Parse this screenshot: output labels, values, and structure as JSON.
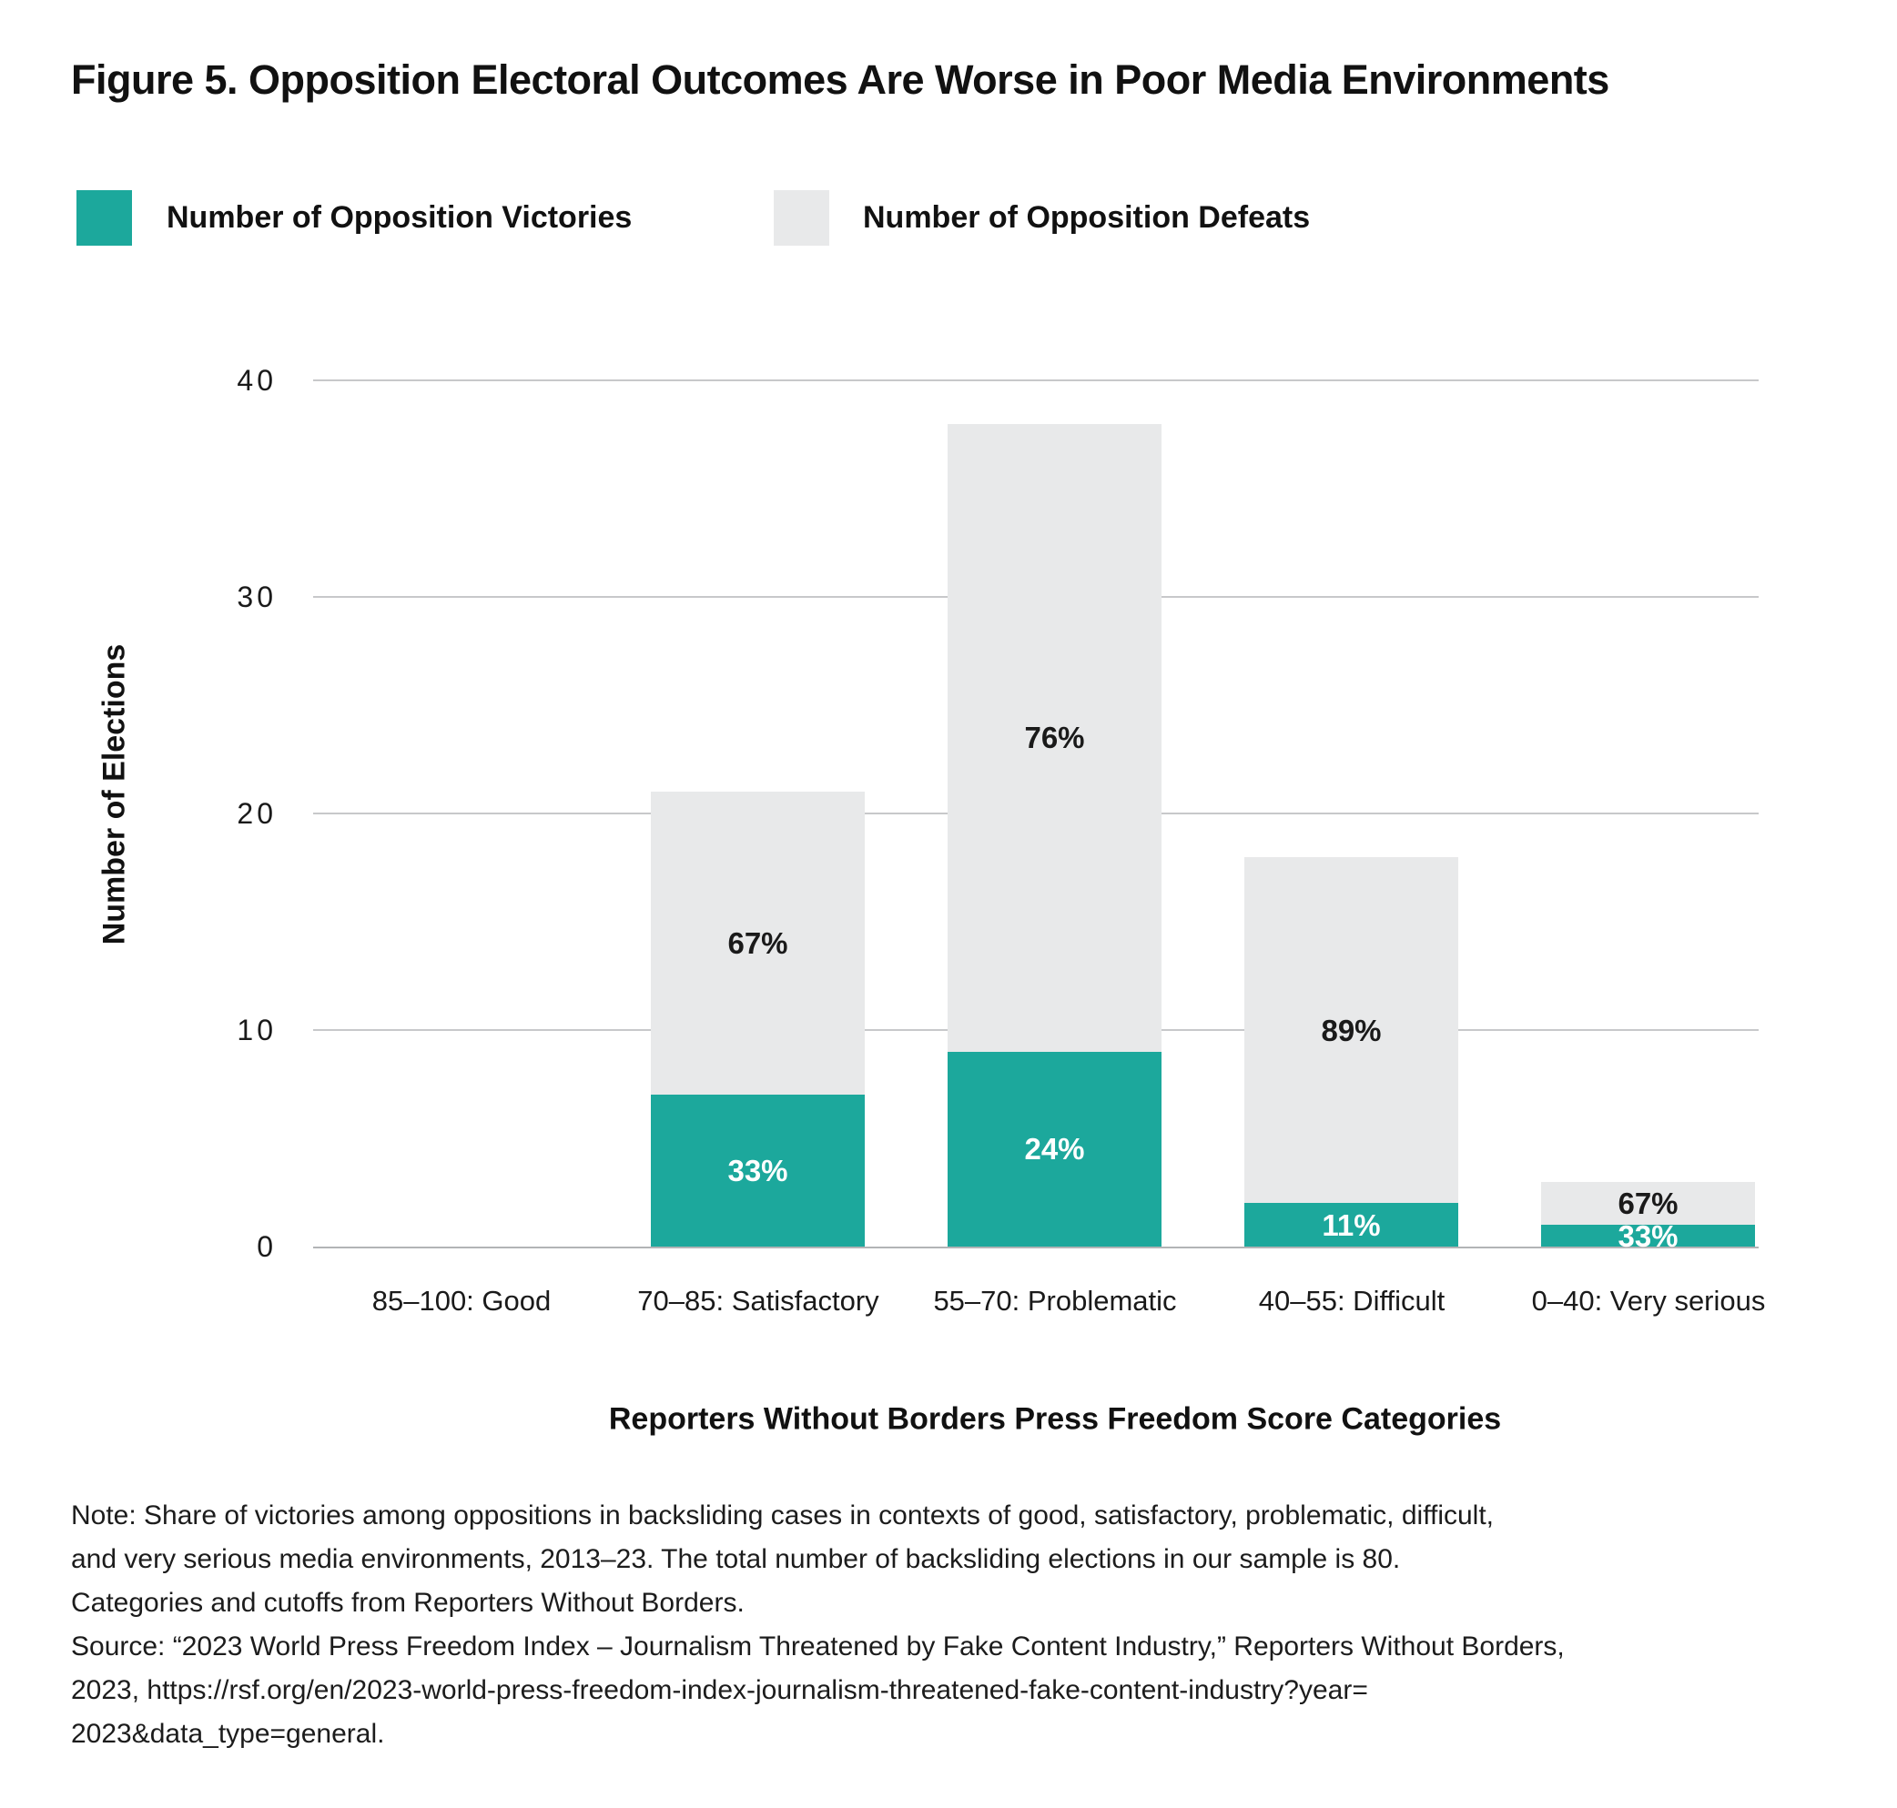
{
  "title": "Figure 5. Opposition Electoral Outcomes Are Worse in Poor Media Environments",
  "legend": {
    "victories": {
      "label": "Number of Opposition Victories",
      "color": "#1CA89C"
    },
    "defeats": {
      "label": "Number of Opposition Defeats",
      "color": "#E8E9EA"
    }
  },
  "chart_data": {
    "type": "bar",
    "stacked": true,
    "categories": [
      "85–100: Good",
      "70–85: Satisfactory",
      "55–70: Problematic",
      "40–55: Difficult",
      "0–40: Very serious"
    ],
    "series": [
      {
        "name": "Number of Opposition Victories",
        "values": [
          0,
          7,
          9,
          2,
          1
        ],
        "labels": [
          "",
          "33%",
          "24%",
          "11%",
          "33%"
        ],
        "color": "#1CA89C",
        "label_color": "#FFFFFF"
      },
      {
        "name": "Number of Opposition Defeats",
        "values": [
          0,
          14,
          29,
          16,
          2
        ],
        "labels": [
          "",
          "67%",
          "76%",
          "89%",
          "67%"
        ],
        "color": "#E8E9EA",
        "label_color": "#1A1A1A"
      }
    ],
    "totals": [
      0,
      21,
      38,
      18,
      3
    ],
    "ylabel": "Number of Elections",
    "xlabel": "Reporters Without Borders Press Freedom Score Categories",
    "yticks": [
      0,
      10,
      20,
      30,
      40
    ],
    "ylim": [
      0,
      40
    ],
    "grid": true,
    "gridline_color": "#C7C8CA",
    "legend_position": "top"
  },
  "note": "Note:  Share of victories among oppositions in backsliding cases in contexts of good, satisfactory, problematic, difficult,\nand very serious media environments, 2013–23. The total number of backsliding elections in our sample is 80.\nCategories and cutoffs from Reporters Without Borders.",
  "source": "Source: “2023 World Press Freedom Index – Journalism Threatened by Fake Content Industry,” Reporters Without Borders,\n2023, https://rsf.org/en/2023-world-press-freedom-index-journalism-threatened-fake-content-industry?year=\n2023&data_type=general."
}
